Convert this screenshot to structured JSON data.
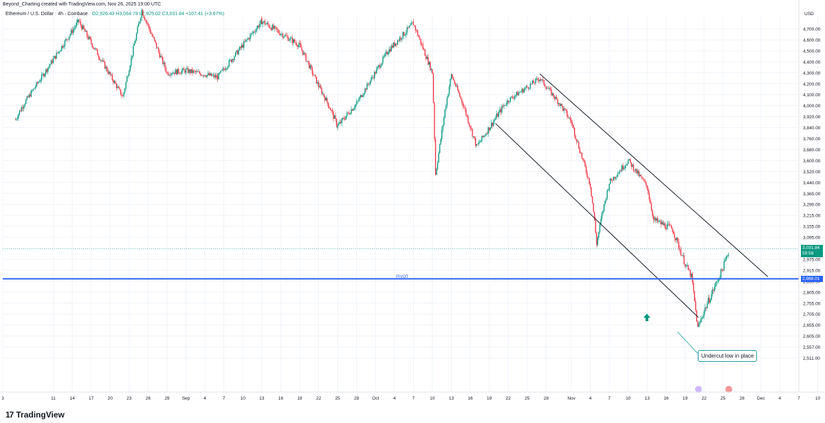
{
  "header": {
    "credit": "Beyond_Charting created with TradingView.com, Nov 26, 2025 19:00 UTC"
  },
  "legend": {
    "symbol": "Ethereum / U.S. Dollar · 4h · Coinbase",
    "ohlc": "O2,926.43 H3,064.78 L2,925.02 C3,031.84 +107.41 (+3.67%)"
  },
  "currency": "USD",
  "price_tag": {
    "price": "3,031.84",
    "countdown": "59:58"
  },
  "pivot": {
    "label": "PIVOT",
    "price": "2,868.01"
  },
  "callout": {
    "text": "Undercut low in place"
  },
  "footer": {
    "brand": "TradingView",
    "logo_mark": "17"
  },
  "colors": {
    "up": "#089981",
    "down": "#f23645",
    "pivot": "#2962ff",
    "channel": "#131722",
    "callout": "#1e9aa0",
    "grid": "#f0f3fa"
  },
  "chart_data": {
    "type": "candlestick",
    "symbol": "ETH/USD",
    "timeframe": "4h",
    "y_ticks": [
      "4,700.00",
      "4,600.00",
      "4,500.00",
      "4,400.00",
      "4,300.00",
      "4,200.00",
      "4,100.00",
      "4,000.00",
      "3,920.00",
      "3,840.00",
      "3,760.00",
      "3,680.00",
      "3,600.00",
      "3,520.00",
      "3,440.00",
      "3,365.00",
      "3,290.00",
      "3,215.00",
      "3,155.00",
      "3,095.00",
      "3,035.00",
      "2,975.00",
      "2,915.00",
      "2,855.00",
      "2,805.00",
      "2,755.00",
      "2,705.00",
      "2,655.00",
      "2,605.00",
      "2,557.00",
      "2,511.00"
    ],
    "x_ticks": [
      "3",
      "11",
      "14",
      "17",
      "20",
      "23",
      "26",
      "29",
      "Sep",
      "4",
      "7",
      "10",
      "13",
      "16",
      "19",
      "22",
      "25",
      "28",
      "Oct",
      "4",
      "7",
      "10",
      "13",
      "16",
      "19",
      "22",
      "25",
      "28",
      "Nov",
      "4",
      "7",
      "10",
      "13",
      "16",
      "19",
      "22",
      "25",
      "28",
      "Dec",
      "4",
      "7",
      "10"
    ],
    "swing_points": [
      {
        "x": "Aug 3",
        "y": 3900
      },
      {
        "x": "Aug 13",
        "y": 4770
      },
      {
        "x": "Aug 20",
        "y": 4080
      },
      {
        "x": "Aug 23",
        "y": 4870
      },
      {
        "x": "Aug 27",
        "y": 4300
      },
      {
        "x": "Sep 1",
        "y": 4320
      },
      {
        "x": "Sep 6",
        "y": 4260
      },
      {
        "x": "Sep 13",
        "y": 4770
      },
      {
        "x": "Sep 19",
        "y": 4550
      },
      {
        "x": "Sep 22",
        "y": 4180
      },
      {
        "x": "Sep 25",
        "y": 3850
      },
      {
        "x": "Sep 28",
        "y": 4020
      },
      {
        "x": "Oct 3",
        "y": 4500
      },
      {
        "x": "Oct 7",
        "y": 4750
      },
      {
        "x": "Oct 10",
        "y": 4300
      },
      {
        "x": "Oct 10",
        "y": 3500
      },
      {
        "x": "Oct 13",
        "y": 4280
      },
      {
        "x": "Oct 17",
        "y": 3700
      },
      {
        "x": "Oct 22",
        "y": 4050
      },
      {
        "x": "Oct 27",
        "y": 4250
      },
      {
        "x": "Nov 1",
        "y": 3880
      },
      {
        "x": "Nov 4",
        "y": 3420
      },
      {
        "x": "Nov 5",
        "y": 3060
      },
      {
        "x": "Nov 7",
        "y": 3440
      },
      {
        "x": "Nov 10",
        "y": 3600
      },
      {
        "x": "Nov 13",
        "y": 3410
      },
      {
        "x": "Nov 14",
        "y": 3190
      },
      {
        "x": "Nov 17",
        "y": 3140
      },
      {
        "x": "Nov 19",
        "y": 2950
      },
      {
        "x": "Nov 20",
        "y": 2880
      },
      {
        "x": "Nov 21",
        "y": 2640
      },
      {
        "x": "Nov 22",
        "y": 2720
      },
      {
        "x": "Nov 24",
        "y": 2850
      },
      {
        "x": "Nov 25",
        "y": 2930
      },
      {
        "x": "Nov 26",
        "y": 3031.84
      }
    ],
    "last_price": 3031.84,
    "pivot_level": 2868.01
  }
}
